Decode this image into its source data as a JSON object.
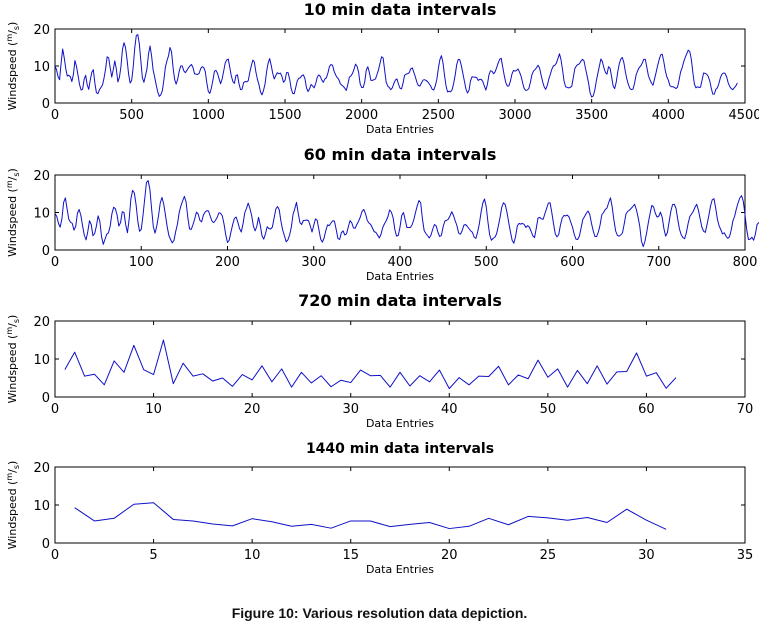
{
  "figure": {
    "caption": "Figure 10: Various resolution data depiction."
  },
  "chart_data": [
    {
      "type": "line",
      "title": "10 min data intervals",
      "xlabel": "Data Entries",
      "ylabel": "Windspeed (m/s)",
      "ylabel_main": "Windspeed (",
      "ylabel_sup": "m",
      "ylabel_slash": "/",
      "ylabel_sub": "s",
      "ylabel_close": ")",
      "xlim": [
        0,
        4500
      ],
      "ylim": [
        0,
        20
      ],
      "xticks": [
        0,
        500,
        1000,
        1500,
        2000,
        2500,
        3000,
        3500,
        4000,
        4500
      ],
      "yticks": [
        0,
        10,
        20
      ],
      "color": "#1010c8",
      "series": [
        {
          "name": "10 min windspeed",
          "x_start": 0,
          "x_step": 10,
          "values": [
            10.0,
            9.0,
            7.1,
            6.3,
            10.8,
            14.6,
            12.3,
            9.3,
            7.3,
            7.5,
            7.1,
            5.8,
            7.7,
            11.5,
            9.9,
            7.5,
            5.0,
            3.5,
            3.7,
            6.4,
            7.5,
            4.9,
            3.7,
            6.2,
            8.3,
            9.0,
            5.4,
            2.8,
            2.5,
            3.6,
            4.2,
            4.9,
            6.8,
            9.2,
            12.5,
            12.2,
            9.5,
            7.0,
            9.0,
            11.4,
            9.2,
            5.7,
            6.9,
            9.8,
            14.5,
            16.3,
            15.0,
            11.7,
            7.8,
            5.4,
            6.1,
            9.7,
            14.8,
            18.2,
            18.5,
            16.0,
            11.3,
            6.8,
            5.6,
            7.4,
            9.3,
            13.3,
            15.4,
            12.7,
            8.9,
            7.0,
            4.9,
            3.0,
            1.8,
            2.2,
            3.3,
            6.2,
            9.7,
            11.4,
            12.7,
            15.0,
            13.8,
            9.6,
            6.4,
            5.1,
            6.4,
            8.6,
            10.0,
            10.0,
            8.7,
            8.2,
            8.8,
            9.5,
            10.0,
            10.4,
            9.6,
            7.9,
            7.8,
            7.7,
            8.0,
            9.3,
            9.8,
            9.6,
            8.5,
            5.5,
            3.1,
            2.6,
            4.1,
            6.2,
            8.6,
            8.8,
            8.0,
            6.5,
            5.2,
            6.5,
            8.6,
            10.8,
            11.6,
            11.9,
            9.6,
            7.3,
            5.8,
            5.3,
            7.4,
            7.6,
            5.2,
            3.6,
            3.7,
            5.5,
            5.8,
            5.7,
            6.0,
            8.2,
            10.0,
            11.6,
            11.1,
            8.4,
            6.4,
            5.0,
            3.0,
            2.2,
            3.4,
            5.2,
            8.5,
            10.8,
            12.0,
            10.2,
            8.0,
            6.5,
            7.4,
            8.2,
            7.9,
            8.1,
            7.2,
            5.6,
            6.1,
            8.2,
            8.2,
            6.5,
            4.0,
            2.6,
            2.5,
            4.2,
            6.0,
            6.7,
            6.8,
            7.4,
            7.6,
            6.6,
            4.1,
            3.1,
            3.8,
            5.0,
            4.6,
            4.1,
            5.2,
            6.9,
            7.6,
            7.2,
            6.2,
            5.6,
            6.5,
            6.8,
            8.1,
            9.9,
            10.4,
            10.2,
            8.6,
            7.6,
            6.9,
            6.4,
            5.3,
            4.8,
            4.5,
            4.0,
            3.4,
            5.1,
            7.0,
            7.3,
            8.0,
            9.1,
            10.5,
            9.9,
            8.3,
            5.2,
            4.2,
            4.2,
            5.7,
            8.9,
            9.8,
            8.3,
            6.1,
            6.1,
            6.3,
            6.5,
            7.7,
            9.0,
            10.8,
            12.5,
            12.2,
            8.8,
            5.6,
            4.6,
            4.2,
            3.6,
            4.1,
            5.3,
            6.2,
            6.5,
            5.1,
            4.0,
            3.8,
            5.4,
            7.5,
            7.8,
            7.9,
            8.2,
            9.2,
            9.5,
            8.3,
            7.1,
            5.6,
            4.7,
            4.6,
            5.4,
            6.2,
            6.3,
            6.1,
            5.8,
            5.2,
            4.6,
            3.7,
            3.5,
            4.6,
            6.3,
            9.3,
            11.7,
            12.8,
            11.0,
            7.6,
            4.7,
            3.0,
            3.2,
            3.0,
            3.6,
            5.3,
            7.6,
            10.4,
            11.8,
            11.7,
            10.1,
            8.0,
            5.9,
            3.8,
            2.7,
            3.4,
            6.0,
            7.1,
            7.0,
            7.0,
            6.9,
            6.1,
            6.4,
            6.4,
            5.8,
            4.6,
            3.5,
            5.0,
            7.6,
            8.7,
            8.6,
            7.9,
            8.4,
            9.5,
            10.8,
            11.8,
            12.1,
            9.7,
            7.4,
            5.5,
            4.6,
            4.6,
            5.9,
            7.8,
            8.8,
            8.6,
            8.8,
            9.2,
            8.3,
            7.2,
            5.4,
            3.9,
            3.4,
            3.5,
            3.9,
            5.5,
            7.6,
            8.6,
            9.0,
            9.5,
            10.2,
            9.5,
            7.6,
            5.8,
            4.4,
            3.7,
            4.7,
            6.4,
            7.7,
            9.1,
            10.0,
            10.2,
            10.8,
            12.0,
            13.3,
            11.7,
            9.0,
            5.9,
            4.4,
            4.2,
            4.1,
            4.2,
            4.5,
            6.8,
            9.3,
            10.0,
            10.4,
            10.6,
            11.3,
            11.8,
            11.4,
            9.3,
            7.4,
            5.3,
            2.7,
            1.6,
            1.9,
            3.4,
            5.9,
            7.9,
            9.9,
            11.9,
            11.2,
            9.5,
            8.2,
            7.8,
            9.8,
            9.4,
            7.1,
            4.6,
            3.9,
            5.6,
            8.4,
            10.6,
            11.9,
            12.3,
            10.9,
            8.4,
            6.4,
            4.9,
            3.9,
            3.6,
            3.8,
            5.4,
            7.6,
            8.7,
            9.6,
            10.0,
            10.8,
            11.8,
            11.8,
            9.6,
            7.4,
            6.3,
            5.4,
            4.8,
            6.5,
            8.2,
            10.1,
            11.7,
            13.0,
            13.2,
            11.3,
            8.8,
            7.1,
            6.2,
            4.7,
            4.4,
            4.4,
            4.2,
            3.9,
            4.3,
            6.2,
            8.4,
            9.5,
            11.1,
            12.3,
            13.3,
            14.3,
            13.9,
            11.8,
            8.2,
            5.1,
            4.1,
            4.4,
            4.2,
            4.3,
            6.2,
            8.1,
            8.0,
            7.8,
            7.2,
            6.0,
            4.0,
            2.4,
            2.4,
            3.7,
            4.1,
            5.3,
            6.9,
            7.8,
            8.1,
            8.0,
            7.1,
            5.5,
            4.5,
            3.9,
            3.6,
            4.1,
            4.6,
            5.4
          ]
        }
      ]
    },
    {
      "type": "line",
      "title": "60 min data intervals",
      "xlabel": "Data Entries",
      "ylabel": "Windspeed (m/s)",
      "ylabel_main": "Windspeed (",
      "ylabel_sup": "m",
      "ylabel_slash": "/",
      "ylabel_sub": "s",
      "ylabel_close": ")",
      "xlim": [
        0,
        800
      ],
      "ylim": [
        0,
        20
      ],
      "xticks": [
        0,
        100,
        200,
        300,
        400,
        500,
        600,
        700,
        800
      ],
      "yticks": [
        0,
        10,
        20
      ],
      "color": "#1010c8",
      "series": [
        {
          "name": "60 min windspeed",
          "x_start": 0,
          "x_step": 2,
          "values": [
            9.7,
            9.0,
            7.1,
            6.1,
            8.3,
            12.7,
            13.9,
            11.0,
            8.2,
            7.4,
            7.1,
            5.3,
            6.3,
            9.8,
            10.8,
            9.2,
            6.4,
            3.9,
            2.7,
            4.9,
            7.8,
            6.8,
            3.8,
            4.4,
            6.4,
            9.1,
            7.6,
            3.5,
            1.5,
            2.9,
            4.2,
            4.6,
            6.4,
            9.7,
            11.4,
            11.0,
            9.3,
            6.4,
            7.3,
            10.2,
            10.0,
            6.7,
            4.6,
            8.3,
            13.7,
            15.9,
            15.2,
            12.1,
            7.7,
            5.0,
            5.5,
            9.2,
            13.6,
            18.0,
            18.5,
            16.2,
            11.0,
            6.2,
            4.5,
            6.4,
            9.1,
            12.5,
            14.0,
            12.3,
            9.4,
            6.3,
            3.9,
            2.8,
            1.9,
            2.6,
            5.0,
            6.9,
            10.0,
            11.8,
            13.1,
            14.3,
            12.8,
            8.6,
            5.6,
            5.5,
            6.8,
            8.3,
            10.1,
            9.6,
            7.9,
            7.5,
            9.3,
            10.1,
            10.5,
            10.4,
            9.0,
            7.7,
            7.3,
            7.9,
            8.7,
            9.9,
            9.8,
            9.1,
            6.9,
            4.0,
            2.0,
            2.6,
            4.8,
            6.8,
            8.4,
            8.8,
            7.4,
            5.7,
            4.8,
            7.0,
            9.9,
            11.1,
            12.5,
            11.1,
            9.2,
            6.4,
            5.1,
            6.3,
            8.7,
            6.6,
            3.8,
            2.9,
            4.3,
            6.2,
            5.7,
            5.6,
            6.1,
            8.5,
            10.9,
            11.6,
            10.7,
            7.6,
            5.3,
            3.8,
            2.2,
            2.7,
            4.0,
            6.1,
            9.5,
            11.0,
            12.7,
            9.8,
            7.3,
            6.8,
            7.9,
            7.9,
            8.0,
            7.8,
            6.4,
            4.8,
            6.6,
            8.3,
            7.9,
            5.4,
            2.9,
            2.1,
            3.2,
            5.2,
            6.7,
            6.5,
            7.2,
            7.8,
            7.7,
            5.5,
            3.1,
            2.8,
            4.6,
            5.1,
            4.0,
            4.3,
            6.1,
            7.8,
            7.3,
            5.9,
            5.8,
            6.8,
            7.7,
            8.8,
            10.3,
            10.8,
            9.7,
            7.9,
            7.2,
            6.8,
            5.9,
            4.9,
            4.7,
            4.0,
            3.2,
            4.2,
            6.0,
            7.0,
            7.8,
            8.9,
            10.7,
            10.1,
            8.6,
            5.5,
            3.7,
            3.9,
            6.1,
            9.2,
            10.0,
            8.1,
            6.0,
            6.0,
            6.0,
            6.7,
            8.1,
            10.0,
            11.8,
            13.2,
            12.6,
            8.3,
            5.2,
            4.4,
            3.8,
            3.2,
            4.0,
            5.6,
            6.8,
            6.4,
            4.7,
            3.6,
            3.9,
            6.2,
            7.7,
            7.9,
            8.2,
            9.1,
            10.2,
            9.2,
            7.8,
            6.5,
            4.5,
            4.2,
            5.1,
            6.6,
            6.8,
            6.3,
            5.7,
            5.1,
            4.7,
            3.4,
            3.1,
            4.8,
            7.0,
            10.1,
            12.5,
            13.6,
            11.5,
            7.4,
            4.0,
            2.6,
            3.1,
            3.4,
            4.3,
            6.4,
            8.7,
            11.4,
            12.6,
            12.1,
            10.1,
            7.4,
            4.9,
            2.6,
            1.8,
            3.6,
            6.4,
            7.1,
            6.9,
            7.1,
            6.8,
            6.0,
            6.5,
            6.1,
            5.0,
            3.8,
            3.3,
            5.8,
            8.5,
            8.7,
            8.3,
            8.2,
            9.7,
            11.1,
            12.5,
            12.6,
            10.0,
            7.0,
            4.3,
            3.5,
            4.1,
            6.6,
            8.5,
            9.2,
            9.1,
            9.3,
            8.8,
            7.4,
            6.1,
            4.2,
            2.9,
            2.8,
            3.7,
            5.9,
            8.2,
            8.9,
            9.8,
            10.4,
            9.5,
            7.1,
            5.1,
            3.6,
            3.6,
            4.8,
            6.7,
            9.4,
            10.0,
            10.8,
            11.2,
            12.7,
            13.9,
            11.5,
            8.0,
            5.1,
            3.9,
            3.7,
            4.0,
            4.6,
            7.0,
            9.6,
            10.3,
            10.6,
            11.1,
            11.6,
            12.2,
            10.8,
            8.8,
            6.3,
            2.3,
            0.9,
            2.3,
            4.7,
            7.4,
            9.8,
            11.9,
            11.5,
            9.8,
            8.8,
            9.0,
            10.1,
            8.7,
            5.7,
            3.7,
            4.6,
            7.5,
            10.3,
            12.1,
            12.2,
            11.1,
            8.2,
            5.6,
            4.1,
            3.3,
            3.0,
            4.6,
            7.0,
            8.9,
            9.6,
            10.3,
            11.4,
            12.2,
            10.6,
            8.3,
            6.1,
            5.0,
            4.7,
            6.8,
            9.1,
            11.7,
            13.4,
            13.7,
            11.2,
            8.2,
            6.4,
            5.4,
            4.3,
            4.6,
            3.7,
            3.1,
            3.5,
            5.3,
            7.8,
            9.0,
            11.0,
            12.6,
            13.9,
            14.5,
            13.0,
            9.5,
            5.4,
            2.8,
            2.9,
            3.4,
            2.6,
            4.2,
            6.8,
            7.3,
            7.4,
            6.1,
            4.0,
            1.9,
            1.3,
            2.5,
            3.9,
            4.8,
            6.7,
            7.4,
            7.5,
            7.1,
            5.0,
            3.4,
            2.9,
            3.1,
            3.7,
            4.1,
            4.3
          ]
        }
      ]
    },
    {
      "type": "line",
      "title": "720 min data intervals",
      "xlabel": "Data Entries",
      "ylabel": "Windspeed (m/s)",
      "ylabel_main": "Windspeed (",
      "ylabel_sup": "m",
      "ylabel_slash": "/",
      "ylabel_sub": "s",
      "ylabel_close": ")",
      "xlim": [
        0,
        70
      ],
      "ylim": [
        0,
        20
      ],
      "xticks": [
        0,
        10,
        20,
        30,
        40,
        50,
        60,
        70
      ],
      "yticks": [
        0,
        10,
        20
      ],
      "color": "#1010c8",
      "series": [
        {
          "name": "720 min windspeed",
          "x_start": 1,
          "x_step": 1,
          "values": [
            7.2,
            11.8,
            5.5,
            6.0,
            3.2,
            9.5,
            6.5,
            13.6,
            7.2,
            5.9,
            15.0,
            3.5,
            8.9,
            5.5,
            6.1,
            4.2,
            5.0,
            2.8,
            5.9,
            4.5,
            8.2,
            4.0,
            7.4,
            2.6,
            6.5,
            3.7,
            5.6,
            2.7,
            4.4,
            3.8,
            7.1,
            5.6,
            5.7,
            2.6,
            6.5,
            2.9,
            5.6,
            4.0,
            7.1,
            2.2,
            5.1,
            3.2,
            5.5,
            5.4,
            8.1,
            3.2,
            5.8,
            4.8,
            9.7,
            5.2,
            7.4,
            2.6,
            7.0,
            3.5,
            8.2,
            3.4,
            6.6,
            6.7,
            11.6,
            5.5,
            6.4,
            2.3,
            5.1
          ]
        }
      ]
    },
    {
      "type": "line",
      "title": "1440 min data intervals",
      "xlabel": "Data Entries",
      "ylabel": "Windspeed (m/s)",
      "ylabel_main": "Windspeed (",
      "ylabel_sup": "m",
      "ylabel_slash": "/",
      "ylabel_sub": "s",
      "ylabel_close": ")",
      "xlim": [
        0,
        35
      ],
      "ylim": [
        0,
        20
      ],
      "xticks": [
        0,
        5,
        10,
        15,
        20,
        25,
        30,
        35
      ],
      "yticks": [
        0,
        10,
        20
      ],
      "color": "#1010c8",
      "series": [
        {
          "name": "1440 min windspeed",
          "x_start": 1,
          "x_step": 1,
          "values": [
            9.3,
            5.8,
            6.5,
            10.2,
            10.6,
            6.2,
            5.8,
            5.0,
            4.5,
            6.4,
            5.6,
            4.4,
            4.9,
            3.9,
            5.8,
            5.8,
            4.3,
            4.9,
            5.4,
            3.8,
            4.4,
            6.5,
            4.8,
            7.0,
            6.6,
            6.0,
            6.7,
            5.4,
            8.9,
            6.0,
            3.6
          ]
        }
      ]
    }
  ]
}
